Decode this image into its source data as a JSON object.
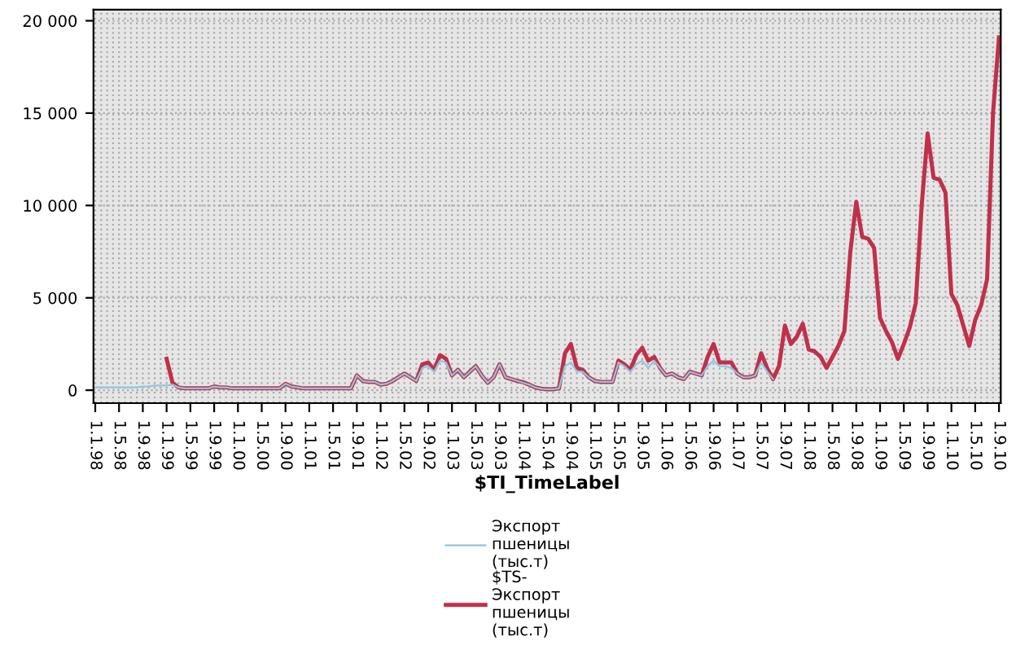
{
  "chart_data": {
    "type": "line",
    "xlabel": "$TI_TimeLabel",
    "categories": [
      "1.1.98",
      null,
      null,
      null,
      "1.5.98",
      null,
      null,
      null,
      "1.9.98",
      null,
      null,
      null,
      "1.1.99",
      null,
      null,
      null,
      "1.5.99",
      null,
      null,
      null,
      "1.9.99",
      null,
      null,
      null,
      "1.1.00",
      null,
      null,
      null,
      "1.5.00",
      null,
      null,
      null,
      "1.9.00",
      null,
      null,
      null,
      "1.1.01",
      null,
      null,
      null,
      "1.5.01",
      null,
      null,
      null,
      "1.9.01",
      null,
      null,
      null,
      "1.1.02",
      null,
      null,
      null,
      "1.5.02",
      null,
      null,
      null,
      "1.9.02",
      null,
      null,
      null,
      "1.1.03",
      null,
      null,
      null,
      "1.5.03",
      null,
      null,
      null,
      "1.9.03",
      null,
      null,
      null,
      "1.1.04",
      null,
      null,
      null,
      "1.5.04",
      null,
      null,
      null,
      "1.9.04",
      null,
      null,
      null,
      "1.1.05",
      null,
      null,
      null,
      "1.5.05",
      null,
      null,
      null,
      "1.9.05",
      null,
      null,
      null,
      "1.1.06",
      null,
      null,
      null,
      "1.5.06",
      null,
      null,
      null,
      "1.9.06",
      null,
      null,
      null,
      "1.1.07",
      null,
      null,
      null,
      "1.5.07",
      null,
      null,
      null,
      "1.9.07",
      null,
      null,
      null,
      "1.1.08",
      null,
      null,
      null,
      "1.5.08",
      null,
      null,
      null,
      "1.9.08",
      null,
      null,
      null,
      "1.1.09",
      null,
      null,
      null,
      "1.5.09",
      null,
      null,
      null,
      "1.9.09",
      null,
      null,
      null,
      "1.1.10",
      null,
      null,
      null,
      "1.5.10",
      null,
      null,
      null,
      "1.9.10"
    ],
    "series": [
      {
        "name": "Экспорт пшеницы (тыс.т)",
        "color": "#8ec5e0",
        "values": [
          150,
          150,
          150,
          150,
          150,
          150,
          150,
          150,
          200,
          200,
          250,
          250,
          250,
          300,
          150,
          100,
          100,
          100,
          100,
          100,
          200,
          150,
          150,
          100,
          100,
          100,
          100,
          100,
          100,
          100,
          100,
          100,
          350,
          200,
          150,
          100,
          100,
          100,
          100,
          100,
          100,
          100,
          100,
          100,
          800,
          500,
          450,
          450,
          300,
          350,
          500,
          700,
          900,
          700,
          500,
          1200,
          1300,
          1000,
          1600,
          1500,
          800,
          1100,
          700,
          1000,
          1300,
          800,
          400,
          700,
          1400,
          700,
          600,
          500,
          400,
          300,
          150,
          80,
          50,
          50,
          100,
          1300,
          1500,
          1000,
          1000,
          700,
          500,
          450,
          450,
          450,
          1500,
          1300,
          1000,
          1400,
          1600,
          1200,
          1600,
          1200,
          800,
          900,
          700,
          600,
          1000,
          900,
          800,
          1300,
          1600,
          1300,
          1300,
          1200,
          900,
          700,
          700,
          800,
          1500,
          1000,
          600,
          null,
          null,
          null,
          null,
          null,
          null,
          null,
          null,
          null,
          null,
          null,
          null,
          null,
          null,
          null,
          null,
          null,
          null,
          null,
          null,
          null,
          null,
          null,
          null,
          null,
          null,
          null,
          null,
          null,
          null,
          null,
          null,
          null,
          null,
          null,
          null,
          null,
          null
        ]
      },
      {
        "name": "$TS-Экспорт пшеницы (тыс.т)",
        "color": "#c0304a",
        "values": [
          null,
          null,
          null,
          null,
          null,
          null,
          null,
          null,
          null,
          null,
          null,
          null,
          1700,
          400,
          150,
          100,
          100,
          100,
          100,
          100,
          200,
          150,
          150,
          100,
          100,
          100,
          100,
          100,
          100,
          100,
          100,
          100,
          350,
          200,
          150,
          100,
          100,
          100,
          100,
          100,
          100,
          100,
          100,
          100,
          800,
          500,
          450,
          450,
          300,
          350,
          500,
          700,
          900,
          700,
          500,
          1400,
          1500,
          1100,
          1900,
          1700,
          800,
          1100,
          700,
          1000,
          1300,
          800,
          400,
          700,
          1400,
          700,
          600,
          500,
          430,
          300,
          150,
          80,
          50,
          50,
          100,
          2000,
          2500,
          1200,
          1100,
          700,
          500,
          450,
          450,
          450,
          1600,
          1400,
          1100,
          1900,
          2300,
          1600,
          1800,
          1200,
          800,
          900,
          700,
          600,
          1000,
          900,
          800,
          1800,
          2500,
          1500,
          1500,
          1500,
          900,
          700,
          700,
          800,
          2000,
          1200,
          600,
          1300,
          3500,
          2500,
          2900,
          3600,
          2200,
          2100,
          1800,
          1200,
          1800,
          2400,
          3200,
          7500,
          10200,
          8300,
          8200,
          7700,
          3900,
          3200,
          2600,
          1700,
          2500,
          3400,
          4700,
          10000,
          13900,
          11500,
          11400,
          10700,
          5200,
          4600,
          3500,
          2400,
          3800,
          4600,
          6000,
          15000,
          19100
        ]
      }
    ],
    "ylim": [
      -700,
      20600
    ],
    "yticks": [
      0,
      {
        "value": 5000,
        "label": "5 000"
      },
      {
        "value": 10000,
        "label": "10 000"
      },
      {
        "value": 15000,
        "label": "15 000"
      },
      {
        "value": 20000,
        "label": "20 000"
      }
    ],
    "grid": true,
    "legend": "bottom",
    "line_style": "solid"
  }
}
